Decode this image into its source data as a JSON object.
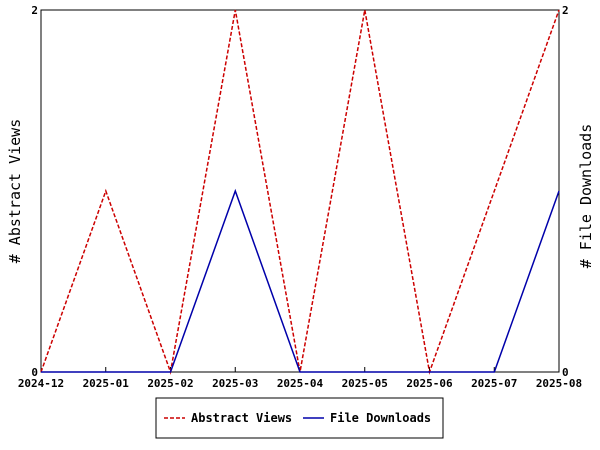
{
  "chart_data": {
    "type": "line",
    "title": "",
    "xlabel": "",
    "ylabel_left": "# Abstract Views",
    "ylabel_right": "# File Downloads",
    "categories": [
      "2024-12",
      "2025-01",
      "2025-02",
      "2025-03",
      "2025-04",
      "2025-05",
      "2025-06",
      "2025-07",
      "2025-08"
    ],
    "ylim_left": [
      0,
      2
    ],
    "ylim_right": [
      0,
      2
    ],
    "yticks_left": [
      "0",
      "2"
    ],
    "yticks_right": [
      "0",
      "2"
    ],
    "grid": false,
    "legend_position": "bottom",
    "series": [
      {
        "name": "Abstract Views",
        "axis": "left",
        "color": "#cc0000",
        "style": "dashed",
        "values": [
          0,
          1,
          0,
          2,
          0,
          2,
          0,
          1,
          2
        ]
      },
      {
        "name": "File Downloads",
        "axis": "right",
        "color": "#0000aa",
        "style": "solid",
        "values": [
          0,
          0,
          0,
          1,
          0,
          0,
          0,
          0,
          1
        ]
      }
    ]
  }
}
